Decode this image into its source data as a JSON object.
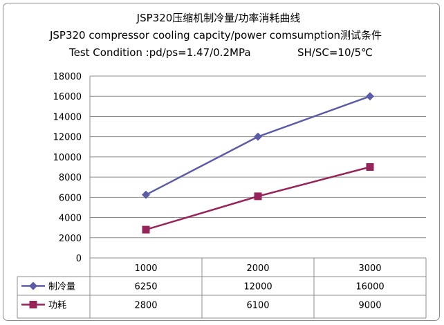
{
  "chart_data": {
    "type": "line",
    "title_lines": [
      "JSP320压缩机制冷量/功率消耗曲线",
      "JSP320 compressor cooling capcity/power comsumption测试条件"
    ],
    "condition": {
      "left": "Test Condition :pd/ps=1.47/0.2MPa",
      "right": "SH/SC=10/5℃"
    },
    "categories": [
      "1000",
      "2000",
      "3000"
    ],
    "ylim": [
      0,
      18000
    ],
    "yticks": [
      0,
      2000,
      4000,
      6000,
      8000,
      10000,
      12000,
      14000,
      16000,
      18000
    ],
    "grid": true,
    "legend": "data table",
    "series": [
      {
        "name": "制冷量",
        "values": [
          6250,
          12000,
          16000
        ],
        "color": "#5b5ba8",
        "marker": "diamond"
      },
      {
        "name": "功耗",
        "values": [
          2800,
          6100,
          9000
        ],
        "color": "#96235a",
        "marker": "square"
      }
    ],
    "table_values": [
      [
        "6250",
        "12000",
        "16000"
      ],
      [
        "2800",
        "6100",
        "9000"
      ]
    ]
  }
}
